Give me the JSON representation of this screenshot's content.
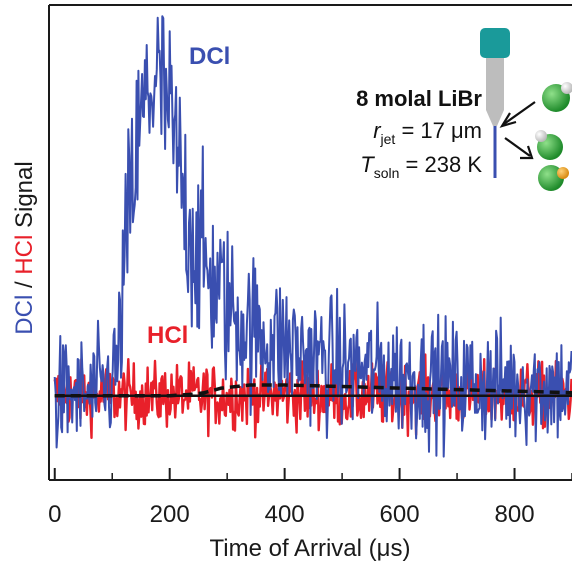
{
  "chart_data": {
    "type": "line",
    "xlabel": "Time of Arrival (μs)",
    "ylabel_parts": [
      {
        "text": "DCl",
        "color": "#3a4fb0"
      },
      {
        "text": " / ",
        "color": "#1a1a1a"
      },
      {
        "text": "HCl",
        "color": "#e8202a"
      },
      {
        "text": " Signal",
        "color": "#1a1a1a"
      }
    ],
    "xlim": [
      -10,
      900
    ],
    "ylim": [
      -0.55,
      2.55
    ],
    "x_ticks": [
      0,
      200,
      400,
      600,
      800
    ],
    "x_tick_labels": [
      "0",
      "200",
      "400",
      "600",
      "800"
    ],
    "y_ticks_visible": false,
    "grid": false,
    "series": [
      {
        "name": "DCl",
        "color": "#3a4fb0",
        "noise_amplitude": 0.38,
        "x": [
          0,
          60,
          90,
          110,
          120,
          130,
          140,
          150,
          160,
          170,
          180,
          190,
          200,
          210,
          220,
          230,
          240,
          250,
          260,
          270,
          280,
          290,
          300,
          320,
          340,
          360,
          380,
          400,
          430,
          460,
          500,
          550,
          600,
          650,
          700,
          750,
          800,
          850,
          900
        ],
        "y": [
          0.0,
          0.0,
          0.05,
          0.2,
          0.75,
          1.2,
          1.5,
          1.75,
          1.95,
          2.05,
          2.05,
          1.95,
          1.8,
          1.6,
          1.4,
          1.2,
          1.05,
          0.95,
          0.85,
          0.78,
          0.72,
          0.65,
          0.6,
          0.5,
          0.44,
          0.4,
          0.36,
          0.33,
          0.28,
          0.24,
          0.2,
          0.16,
          0.13,
          0.11,
          0.09,
          0.08,
          0.07,
          0.06,
          0.05
        ]
      },
      {
        "name": "HCl",
        "color": "#e8202a",
        "noise_amplitude": 0.15,
        "x": [
          0,
          900
        ],
        "y": [
          0.0,
          0.0
        ]
      },
      {
        "name": "",
        "color": "#111111",
        "style": "dashed",
        "x": [
          0,
          200,
          240,
          260,
          290,
          340,
          400,
          500,
          600,
          700,
          800,
          900
        ],
        "y": [
          0.0,
          0.0,
          0.01,
          0.02,
          0.05,
          0.07,
          0.07,
          0.06,
          0.05,
          0.04,
          0.03,
          0.02
        ]
      },
      {
        "name": "",
        "color": "#111111",
        "style": "solid",
        "x": [
          0,
          900
        ],
        "y": [
          0.0,
          0.0
        ]
      }
    ],
    "annotations": {
      "dcl_label": {
        "text": "DCl",
        "color": "#3a4fb0"
      },
      "hcl_label": {
        "text": "HCl",
        "color": "#e8202a"
      }
    }
  },
  "inset": {
    "line1": "8 molal LiBr",
    "r_symbol": "r",
    "r_sub": "jet",
    "r_rest": " = 17 μm",
    "t_symbol": "T",
    "t_sub": "soln",
    "t_rest": " = 238 K",
    "colors": {
      "nozzle_cap": "#1a9a9a",
      "nozzle_body": "#bdbdbd",
      "jet": "#3a4fb0",
      "molecule_green": "#2fae3c",
      "h_atom": "#f2f2f2",
      "d_atom": "#f0a020"
    }
  }
}
